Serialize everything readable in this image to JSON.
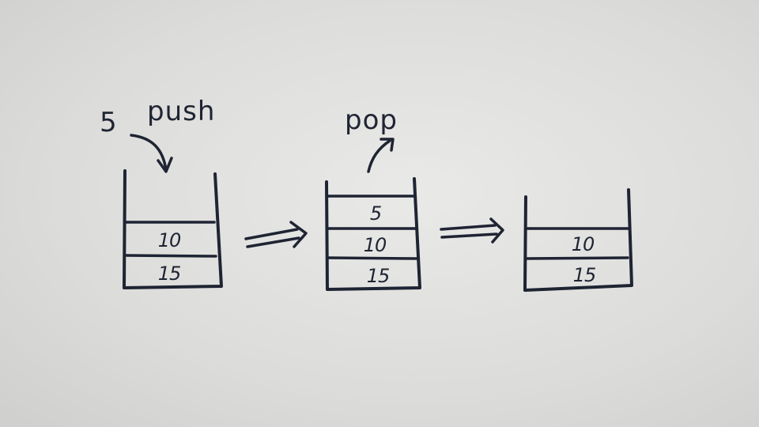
{
  "labels": {
    "pushed_value": "5",
    "push": "push",
    "pop": "pop"
  },
  "stacks": [
    {
      "cells": [
        "10",
        "15"
      ]
    },
    {
      "cells": [
        "5",
        "10",
        "15"
      ]
    },
    {
      "cells": [
        "10",
        "15"
      ]
    }
  ]
}
